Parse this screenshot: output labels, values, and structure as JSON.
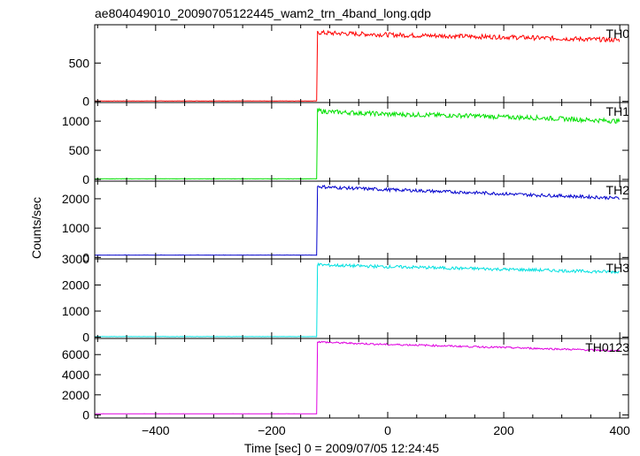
{
  "chart_data": {
    "type": "line",
    "title": "ae804049010_20090705122445_wam2_trn_4band_long.qdp",
    "xlabel": "Time [sec] 0 = 2009/07/05 12:24:45",
    "ylabel": "Counts/sec",
    "xlim": [
      -505,
      415
    ],
    "xticks": [
      -400,
      -200,
      0,
      200,
      400
    ],
    "grid": false,
    "panels": [
      {
        "name": "TH0",
        "color": "#ff0000",
        "ylim": [
          -15,
          1000
        ],
        "yticks": [
          0,
          500
        ],
        "x": [
          -505,
          -122,
          -121,
          -100,
          -50,
          0,
          50,
          100,
          150,
          200,
          250,
          300,
          350,
          400
        ],
        "y": [
          5,
          5,
          900,
          890,
          880,
          870,
          860,
          855,
          845,
          840,
          830,
          820,
          810,
          800
        ],
        "noise": 30
      },
      {
        "name": "TH1",
        "color": "#00e000",
        "ylim": [
          -30,
          1320
        ],
        "yticks": [
          0,
          500,
          1000
        ],
        "x": [
          -505,
          -122,
          -121,
          -100,
          -50,
          0,
          50,
          100,
          150,
          200,
          250,
          300,
          350,
          400
        ],
        "y": [
          10,
          10,
          1180,
          1160,
          1140,
          1120,
          1110,
          1100,
          1090,
          1070,
          1060,
          1040,
          1020,
          1000
        ],
        "noise": 40
      },
      {
        "name": "TH2",
        "color": "#0000cc",
        "ylim": [
          -50,
          2600
        ],
        "yticks": [
          0,
          1000,
          2000
        ],
        "x": [
          -505,
          -122,
          -121,
          -100,
          -50,
          0,
          50,
          100,
          150,
          200,
          250,
          300,
          350,
          400
        ],
        "y": [
          80,
          80,
          2420,
          2390,
          2350,
          2310,
          2280,
          2240,
          2210,
          2170,
          2130,
          2100,
          2060,
          2020
        ],
        "noise": 55
      },
      {
        "name": "TH3",
        "color": "#00e0e0",
        "ylim": [
          -50,
          3000
        ],
        "yticks": [
          0,
          1000,
          2000,
          3000
        ],
        "x": [
          -505,
          -122,
          -121,
          -100,
          -50,
          0,
          50,
          100,
          150,
          200,
          250,
          300,
          350,
          400
        ],
        "y": [
          20,
          20,
          2780,
          2760,
          2730,
          2700,
          2680,
          2650,
          2630,
          2600,
          2580,
          2550,
          2520,
          2500
        ],
        "noise": 60
      },
      {
        "name": "TH0123",
        "color": "#e000e0",
        "ylim": [
          -300,
          7600
        ],
        "yticks": [
          0,
          2000,
          4000,
          6000
        ],
        "x": [
          -505,
          -122,
          -121,
          -100,
          -50,
          0,
          50,
          100,
          150,
          200,
          250,
          300,
          350,
          400
        ],
        "y": [
          120,
          120,
          7280,
          7200,
          7100,
          7000,
          6950,
          6860,
          6780,
          6700,
          6620,
          6540,
          6460,
          6380
        ],
        "noise": 90
      }
    ]
  }
}
